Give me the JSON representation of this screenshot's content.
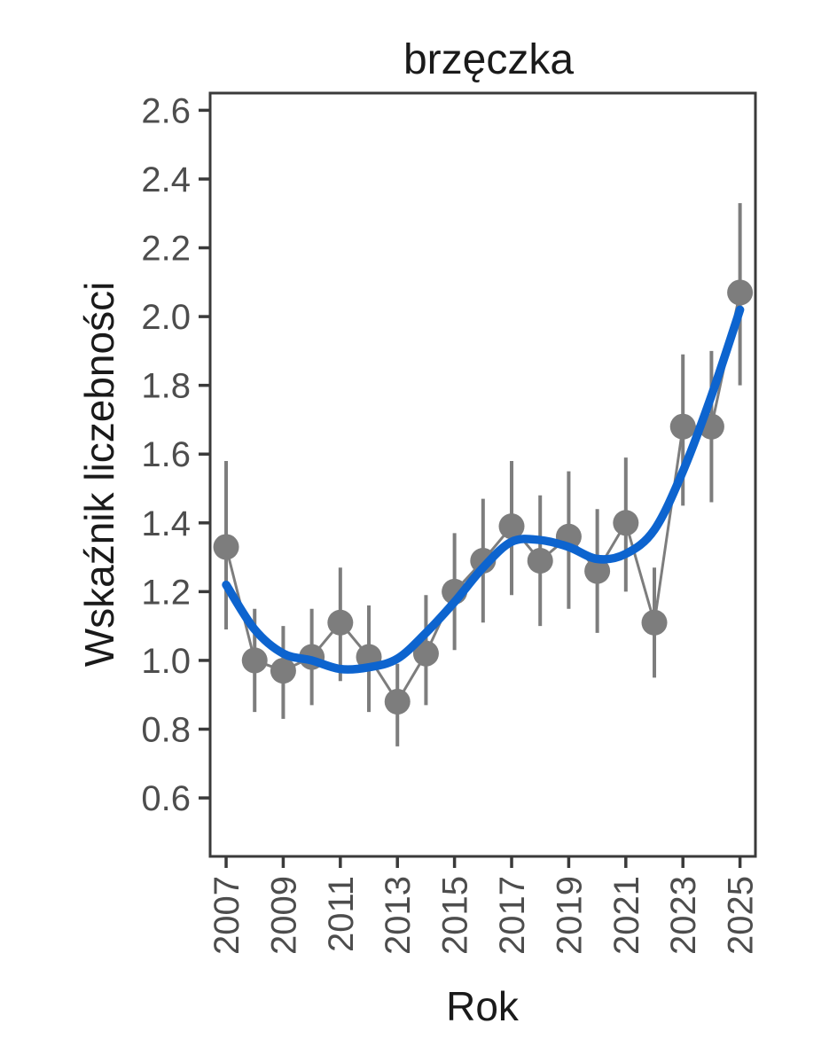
{
  "title": "brzęczka",
  "chart_data": {
    "type": "scatter",
    "title": "brzęczka",
    "xlabel": "Rok",
    "ylabel": "Wskaźnik liczebności",
    "x": [
      2007,
      2008,
      2009,
      2010,
      2011,
      2012,
      2013,
      2014,
      2015,
      2016,
      2017,
      2018,
      2019,
      2020,
      2021,
      2022,
      2023,
      2024,
      2025
    ],
    "series": [
      {
        "name": "wskaznik-liczebnosci-punkty",
        "values": [
          1.33,
          1.0,
          0.97,
          1.01,
          1.11,
          1.01,
          0.88,
          1.02,
          1.2,
          1.29,
          1.39,
          1.29,
          1.36,
          1.26,
          1.4,
          1.11,
          1.68,
          1.68,
          2.07
        ],
        "err_low": [
          1.09,
          0.85,
          0.83,
          0.87,
          0.94,
          0.85,
          0.75,
          0.87,
          1.03,
          1.11,
          1.19,
          1.1,
          1.15,
          1.08,
          1.2,
          0.95,
          1.45,
          1.46,
          1.8
        ],
        "err_high": [
          1.58,
          1.15,
          1.1,
          1.15,
          1.27,
          1.16,
          0.99,
          1.19,
          1.37,
          1.47,
          1.58,
          1.48,
          1.55,
          1.44,
          1.59,
          1.27,
          1.89,
          1.9,
          2.33
        ]
      },
      {
        "name": "trend-wygladzony",
        "values": [
          1.22,
          1.09,
          1.02,
          1.0,
          0.975,
          0.98,
          1.005,
          1.08,
          1.17,
          1.27,
          1.345,
          1.35,
          1.33,
          1.295,
          1.31,
          1.38,
          1.55,
          1.77,
          2.02
        ]
      }
    ],
    "x_tick_labels": [
      "2007",
      "2009",
      "2011",
      "2013",
      "2015",
      "2017",
      "2019",
      "2021",
      "2023",
      "2025"
    ],
    "y_tick_labels": [
      "2.6",
      "2.4",
      "2.2",
      "2.0",
      "1.8",
      "1.6",
      "1.4",
      "1.2",
      "1.0",
      "0.8",
      "0.6"
    ],
    "xlim": [
      2006.44,
      2025.54
    ],
    "ylim": [
      0.43,
      2.65
    ],
    "grid": false,
    "legend": "none",
    "colors": {
      "points": "#7d7d7d",
      "error_bars": "#7d7d7d",
      "connector": "#7d7d7d",
      "trend": "#0d64cf",
      "axis_text": "#4d4d4d",
      "axis_border": "#3a3a3a",
      "title_text": "#1a1a1a"
    }
  }
}
